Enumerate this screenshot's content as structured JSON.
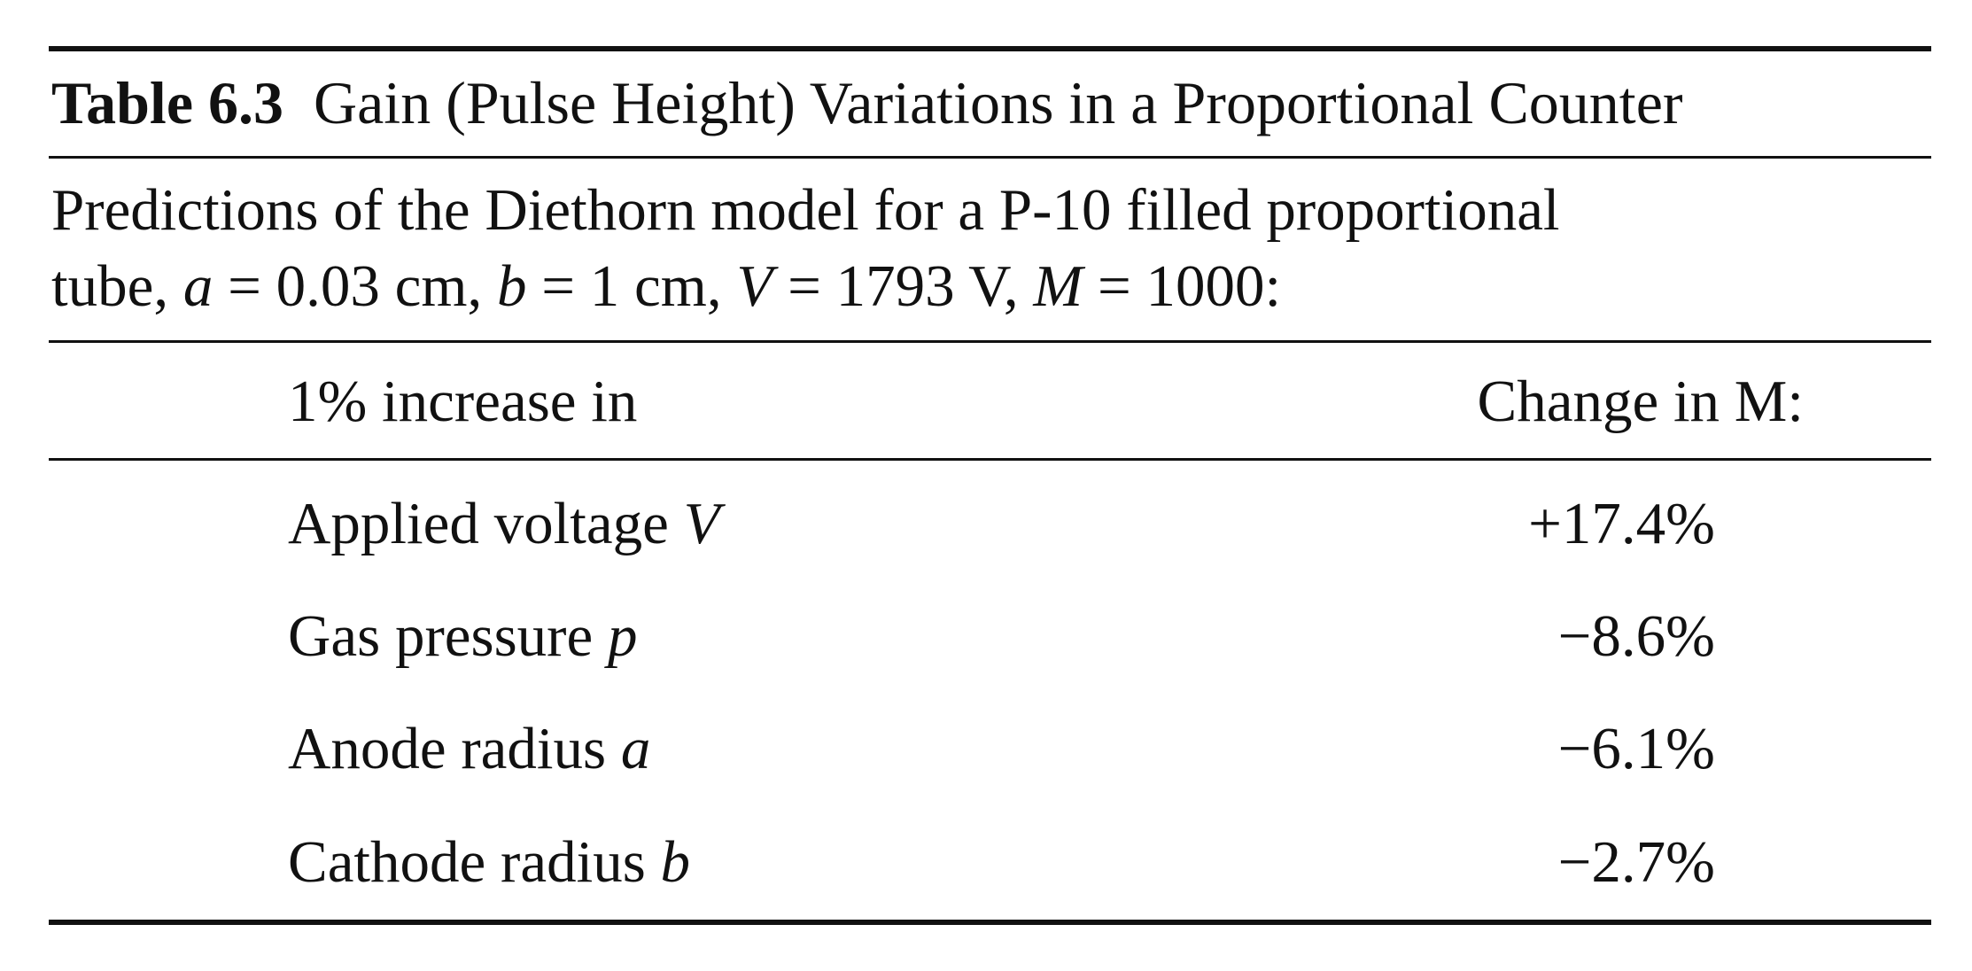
{
  "table": {
    "label": "Table 6.3",
    "title": "Gain (Pulse Height) Variations in a Proportional Counter",
    "caption": {
      "line1": "Predictions of the Diethorn model for a P-10 filled proportional",
      "line2_prefix": "tube, ",
      "a_symbol": "a",
      "a_value": " = 0.03 cm, ",
      "b_symbol": "b",
      "b_value": " = 1 cm, ",
      "v_symbol": "V",
      "v_value": " = 1793 V, ",
      "m_symbol": "M",
      "m_value": " = 1000:"
    },
    "headers": {
      "col1": "1% increase in",
      "col2": "Change in M:"
    },
    "rows": [
      {
        "label": "Applied voltage ",
        "symbol": "V",
        "change": "+17.4%"
      },
      {
        "label": "Gas pressure ",
        "symbol": "p",
        "change": "−8.6%"
      },
      {
        "label": "Anode radius ",
        "symbol": "a",
        "change": "−6.1%"
      },
      {
        "label": "Cathode radius ",
        "symbol": "b",
        "change": "−2.7%"
      }
    ]
  }
}
